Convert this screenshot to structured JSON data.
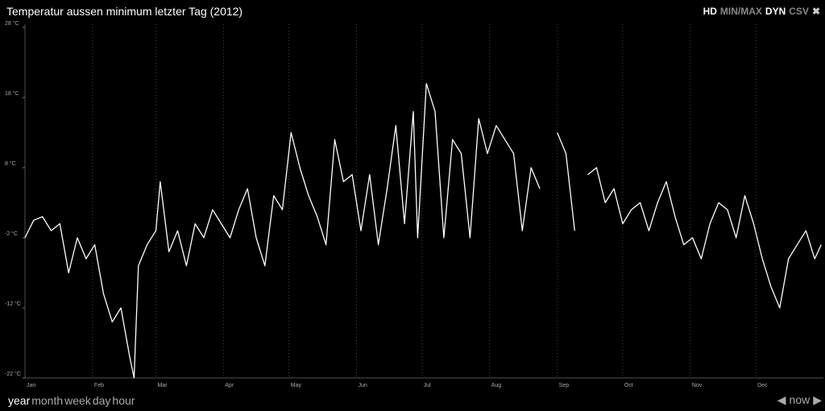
{
  "chart_data": {
    "type": "line",
    "title": "Temperatur aussen minimum letzter Tag (2012)",
    "color": "#ffffff",
    "xlim": [
      0,
      366
    ],
    "ylim": [
      -22,
      28
    ],
    "grid": "x",
    "xticks": [
      {
        "value": 0,
        "label": "Jan"
      },
      {
        "value": 31,
        "label": "Feb"
      },
      {
        "value": 60,
        "label": "Mar"
      },
      {
        "value": 91,
        "label": "Apr"
      },
      {
        "value": 121,
        "label": "May"
      },
      {
        "value": 152,
        "label": "Jun"
      },
      {
        "value": 182,
        "label": "Jul"
      },
      {
        "value": 213,
        "label": "Aug"
      },
      {
        "value": 244,
        "label": "Sep"
      },
      {
        "value": 274,
        "label": "Oct"
      },
      {
        "value": 305,
        "label": "Nov"
      },
      {
        "value": 335,
        "label": "Dec"
      }
    ],
    "yticks": [
      {
        "value": 28,
        "label": "28 °C"
      },
      {
        "value": 18,
        "label": "18 °C"
      },
      {
        "value": 8,
        "label": "8 °C"
      },
      {
        "value": -2,
        "label": "-2 °C"
      },
      {
        "value": -12,
        "label": "-12 °C"
      },
      {
        "value": -22,
        "label": "-22 °C"
      }
    ],
    "x": [
      0,
      4,
      8,
      12,
      16,
      20,
      24,
      28,
      32,
      36,
      40,
      44,
      48,
      50,
      52,
      56,
      60,
      62,
      66,
      70,
      74,
      78,
      82,
      86,
      90,
      94,
      98,
      102,
      106,
      110,
      114,
      118,
      122,
      126,
      130,
      134,
      138,
      142,
      146,
      150,
      154,
      158,
      162,
      166,
      170,
      174,
      178,
      180,
      184,
      188,
      192,
      196,
      200,
      204,
      208,
      212,
      216,
      220,
      224,
      228,
      232,
      236,
      240,
      244,
      248,
      252,
      255,
      258,
      262,
      266,
      270,
      274,
      278,
      282,
      286,
      290,
      294,
      298,
      302,
      306,
      310,
      314,
      318,
      322,
      326,
      330,
      334,
      338,
      342,
      346,
      350,
      354,
      358,
      362,
      365
    ],
    "values": [
      -2,
      0.5,
      1,
      -1,
      0,
      -7,
      -2,
      -5,
      -3,
      -10,
      -14,
      -12,
      -19,
      -22,
      -6,
      -3,
      -1,
      6,
      -4,
      -1,
      -6,
      0,
      -2,
      2,
      0,
      -2,
      2,
      5,
      -2,
      -6,
      4,
      2,
      13,
      8,
      4,
      1,
      -3,
      12,
      6,
      7,
      -1,
      7,
      -3,
      5,
      14,
      0,
      16,
      -2,
      20,
      16,
      -2,
      12,
      10,
      -2,
      15,
      10,
      14,
      12,
      10,
      -1,
      8,
      5,
      null,
      13,
      10,
      -1,
      null,
      7,
      8,
      3,
      5,
      0,
      2,
      3,
      -1,
      3,
      6,
      1,
      -3,
      -2,
      -5,
      0,
      3,
      2,
      -2,
      4,
      0,
      -5,
      -9,
      -12,
      -5,
      -3,
      -1,
      -5,
      -3
    ]
  },
  "ui": {
    "tools": [
      "HD",
      "MIN/MAX",
      "DYN",
      "CSV",
      "✖"
    ],
    "ranges": [
      "year",
      "month",
      "week",
      "day",
      "hour"
    ],
    "nav": [
      "◀",
      "now",
      "▶"
    ]
  }
}
